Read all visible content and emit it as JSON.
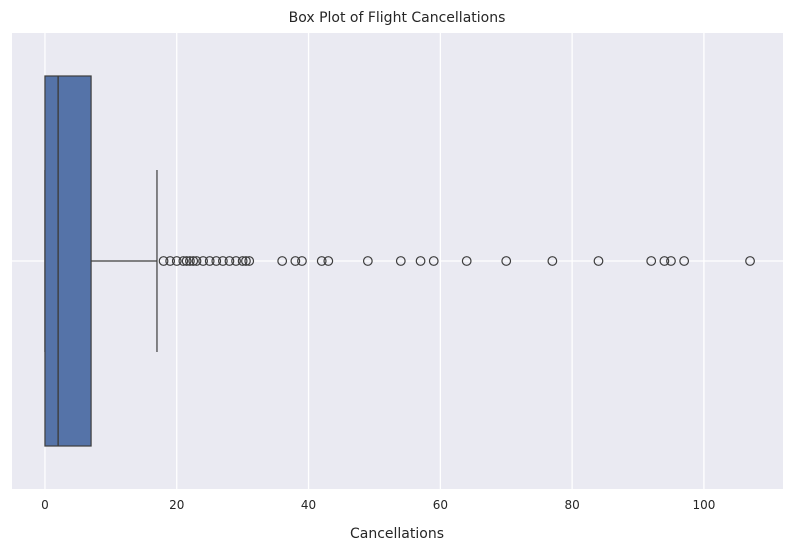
{
  "chart_data": {
    "type": "box",
    "title": "Box Plot of Flight Cancellations",
    "xlabel": "Cancellations",
    "ylabel": "",
    "xlim": [
      -5,
      112
    ],
    "xticks": [
      0,
      20,
      40,
      60,
      80,
      100
    ],
    "grid": true,
    "box": {
      "whisker_low": 0,
      "q1": 0,
      "median": 2,
      "q3": 7,
      "whisker_high": 17,
      "outliers": [
        18,
        19,
        20,
        21,
        21.5,
        22,
        22.5,
        23,
        24,
        25,
        26,
        27,
        28,
        29,
        30,
        30.5,
        31,
        36,
        38,
        39,
        42,
        43,
        49,
        54,
        57,
        59,
        64,
        70,
        77,
        84,
        92,
        94,
        95,
        97,
        107
      ]
    },
    "colors": {
      "background": "#eaeaf2",
      "grid": "#ffffff",
      "box_fill": "#5573a8",
      "line": "#3d3d3d"
    }
  }
}
